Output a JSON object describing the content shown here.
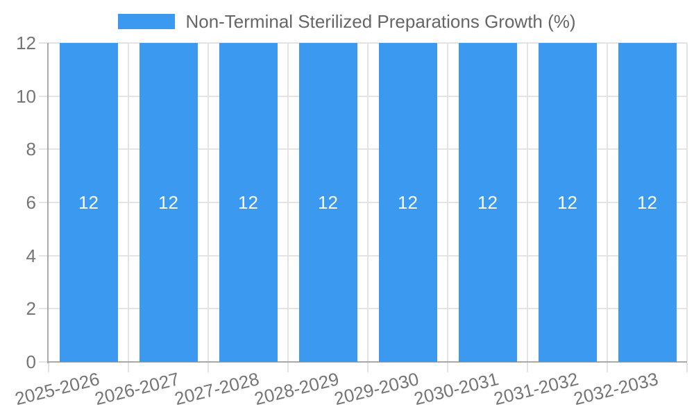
{
  "legend": {
    "label": "Non-Terminal Sterilized Preparations Growth (%)"
  },
  "chart_data": {
    "type": "bar",
    "title": "Non-Terminal Sterilized Preparations Growth (%)",
    "categories": [
      "2025-2026",
      "2026-2027",
      "2027-2028",
      "2028-2029",
      "2029-2030",
      "2030-2031",
      "2031-2032",
      "2032-2033"
    ],
    "values": [
      12,
      12,
      12,
      12,
      12,
      12,
      12,
      12
    ],
    "bar_labels": [
      "12",
      "12",
      "12",
      "12",
      "12",
      "12",
      "12",
      "12"
    ],
    "xlabel": "",
    "ylabel": "",
    "ylim": [
      0,
      12
    ],
    "yticks": [
      0,
      2,
      4,
      6,
      8,
      10,
      12
    ],
    "grid": true,
    "legend_position": "top",
    "colors": {
      "bar": "#3b9af0",
      "bar_label": "#ffffff",
      "grid_line": "#e3e3e3",
      "axis_line": "#a9a9a9",
      "tick_label": "#757575",
      "legend_text": "#666666",
      "background": "#ffffff"
    }
  }
}
